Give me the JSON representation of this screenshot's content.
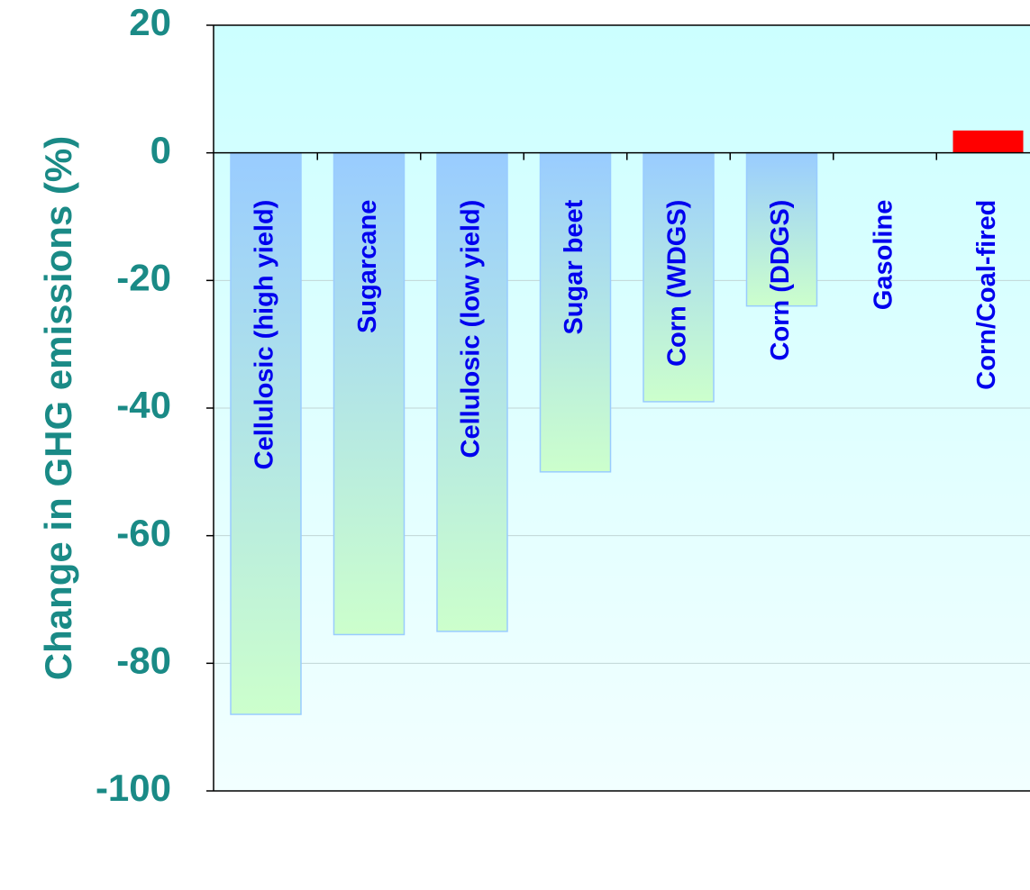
{
  "chart_data": {
    "type": "bar",
    "title": "",
    "xlabel": "",
    "ylabel": "Change in GHG emissions (%)",
    "ylim": [
      -100,
      20
    ],
    "yticks": [
      "20",
      "0",
      "-20",
      "-40",
      "-60",
      "-80",
      "-100"
    ],
    "grid": true,
    "categories": [
      "Cellulosic (high yield)",
      "Sugarcane",
      "Cellulosic (low yield)",
      "Sugar beet",
      "Corn (WDGS)",
      "Corn (DDGS)",
      "Gasoline",
      "Corn/Coal-fired"
    ],
    "values": [
      -88,
      -75.5,
      -75,
      -50,
      -39,
      -24,
      0,
      3.5
    ],
    "colors": {
      "bar_top": "#99ccff",
      "bar_bottom": "#ccffcc",
      "bar_border": "#99ccff",
      "positive_bar": "#ff0000",
      "plot_bg_top": "#ccffff",
      "plot_bg_bottom": "#f2ffff",
      "axis_text": "#1a8a86",
      "category_text": "#0000ee"
    }
  }
}
